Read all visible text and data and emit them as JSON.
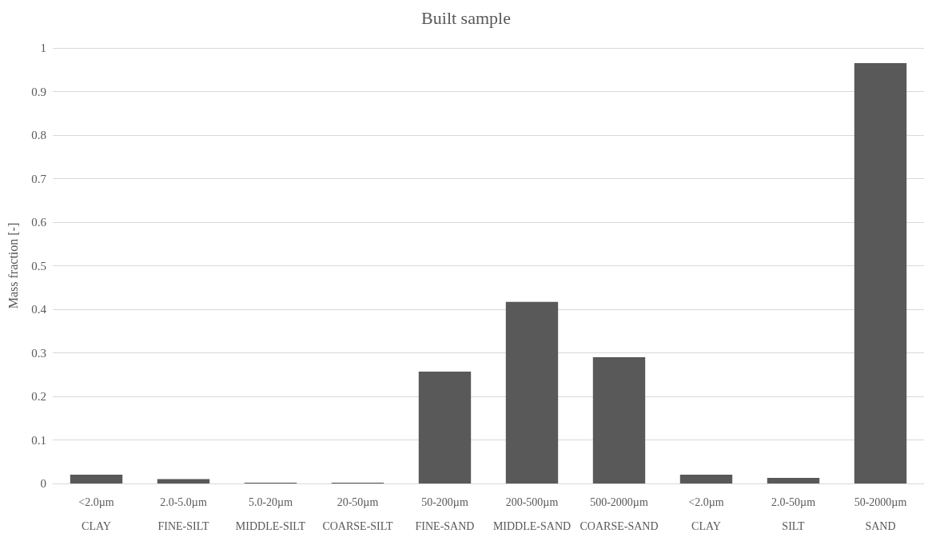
{
  "chart_data": {
    "type": "bar",
    "title": "Built sample",
    "ylabel": "Mass fraction [-]",
    "categories": [
      "<2.0µm\nCLAY",
      "2.0-5.0µm\nFINE-SILT",
      "5.0-20µm\nMIDDLE-SILT",
      "20-50µm\nCOARSE-SILT",
      "50-200µm\nFINE-SAND",
      "200-500µm\nMIDDLE-SAND",
      "500-2000µm\nCOARSE-SAND",
      "<2.0µm\nCLAY",
      "2.0-50µm\nSILT",
      "50-2000µm\nSAND"
    ],
    "values": [
      0.02,
      0.01,
      0.002,
      0.002,
      0.257,
      0.417,
      0.29,
      0.02,
      0.013,
      0.965
    ],
    "color": "#595959",
    "ylim": [
      0,
      1
    ],
    "yticks": [
      0,
      0.1,
      0.2,
      0.3,
      0.4,
      0.5,
      0.6,
      0.7,
      0.8,
      0.9,
      1
    ],
    "grid": "y"
  }
}
